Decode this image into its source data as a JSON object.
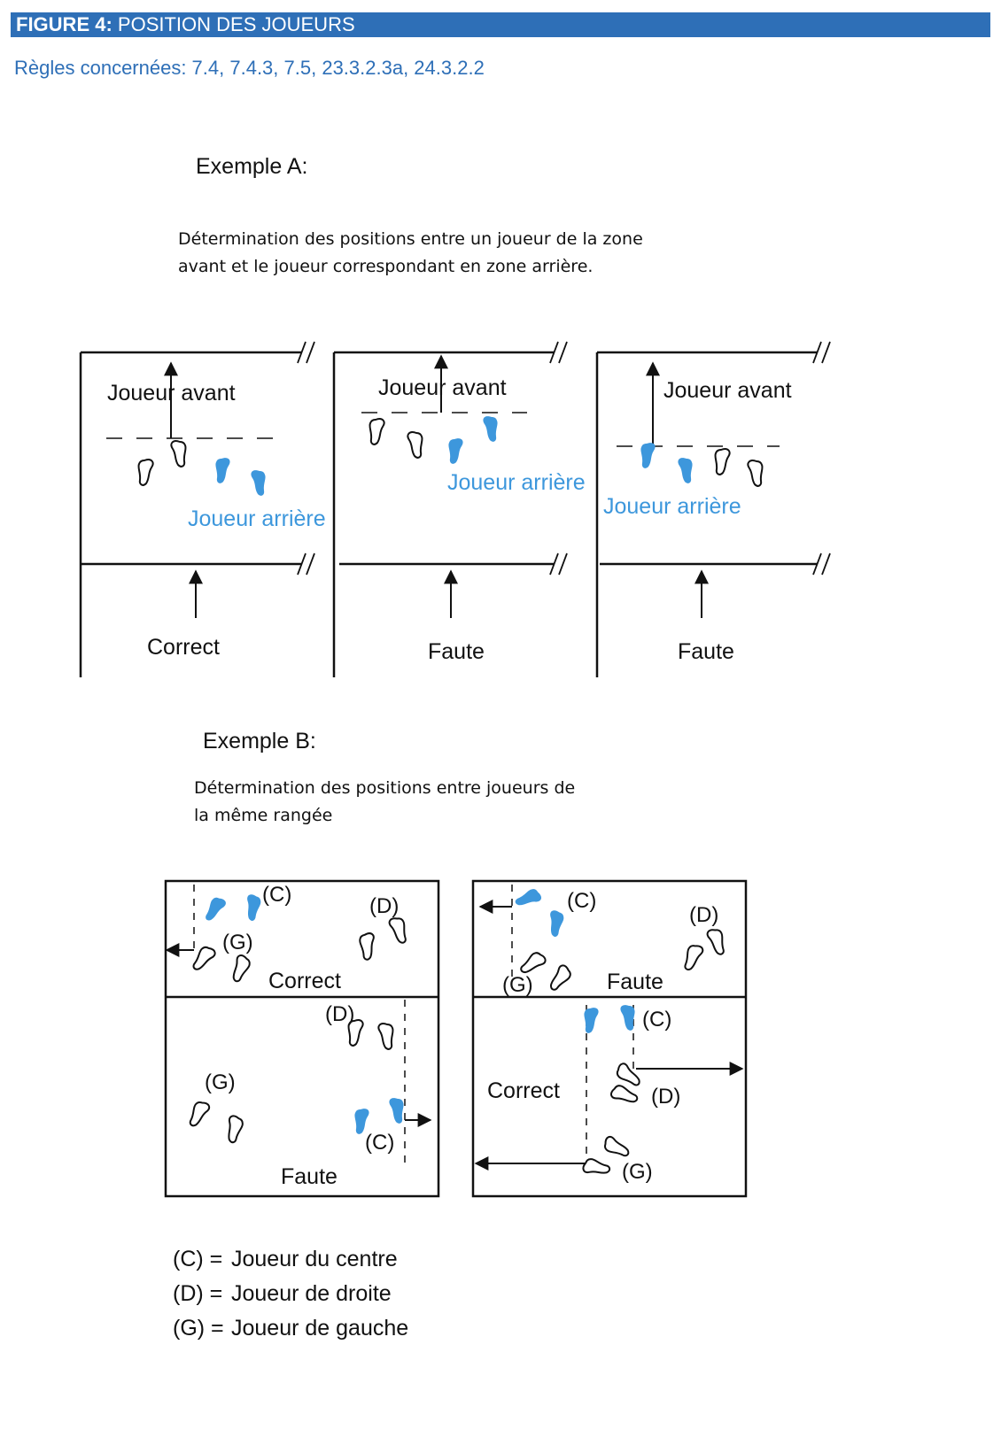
{
  "figure": {
    "label": "FIGURE 4:",
    "title": "POSITION DES JOUEURS"
  },
  "rules": "Règles concernées: 7.4, 7.4.3, 7.5, 23.3.2.3a, 24.3.2.2",
  "example_a": {
    "heading": "Exemple A:",
    "desc_line1": "Détermination des positions entre un joueur de la zone",
    "desc_line2": "avant et le joueur correspondant en zone arrière.",
    "panels": [
      {
        "front_label": "Joueur avant",
        "back_label": "Joueur arrière",
        "verdict": "Correct"
      },
      {
        "front_label": "Joueur avant",
        "back_label": "Joueur arrière",
        "verdict": "Faute"
      },
      {
        "front_label": "Joueur avant",
        "back_label": "Joueur arrière",
        "verdict": "Faute"
      }
    ]
  },
  "example_b": {
    "heading": "Exemple B:",
    "desc_line1": "Détermination des positions entre joueurs de",
    "desc_line2": "la même rangée",
    "panels": [
      {
        "verdict": "Correct",
        "C": "(C)",
        "D": "(D)",
        "G": "(G)"
      },
      {
        "verdict": "Faute",
        "C": "(C)",
        "D": "(D)",
        "G": "(G)"
      },
      {
        "verdict": "Faute",
        "C": "(C)",
        "D": "(D)",
        "G": "(G)"
      },
      {
        "verdict": "Correct",
        "C": "(C)",
        "D": "(D)",
        "G": "(G)"
      }
    ]
  },
  "legend": [
    {
      "key": "(C) =",
      "value": "Joueur du centre"
    },
    {
      "key": "(D) =",
      "value": "Joueur de droite"
    },
    {
      "key": "(G) =",
      "value": "Joueur de gauche"
    }
  ],
  "colors": {
    "header": "#2e6fb7",
    "back_player": "#3d97dc",
    "text_blue": "#2e6fb7"
  }
}
